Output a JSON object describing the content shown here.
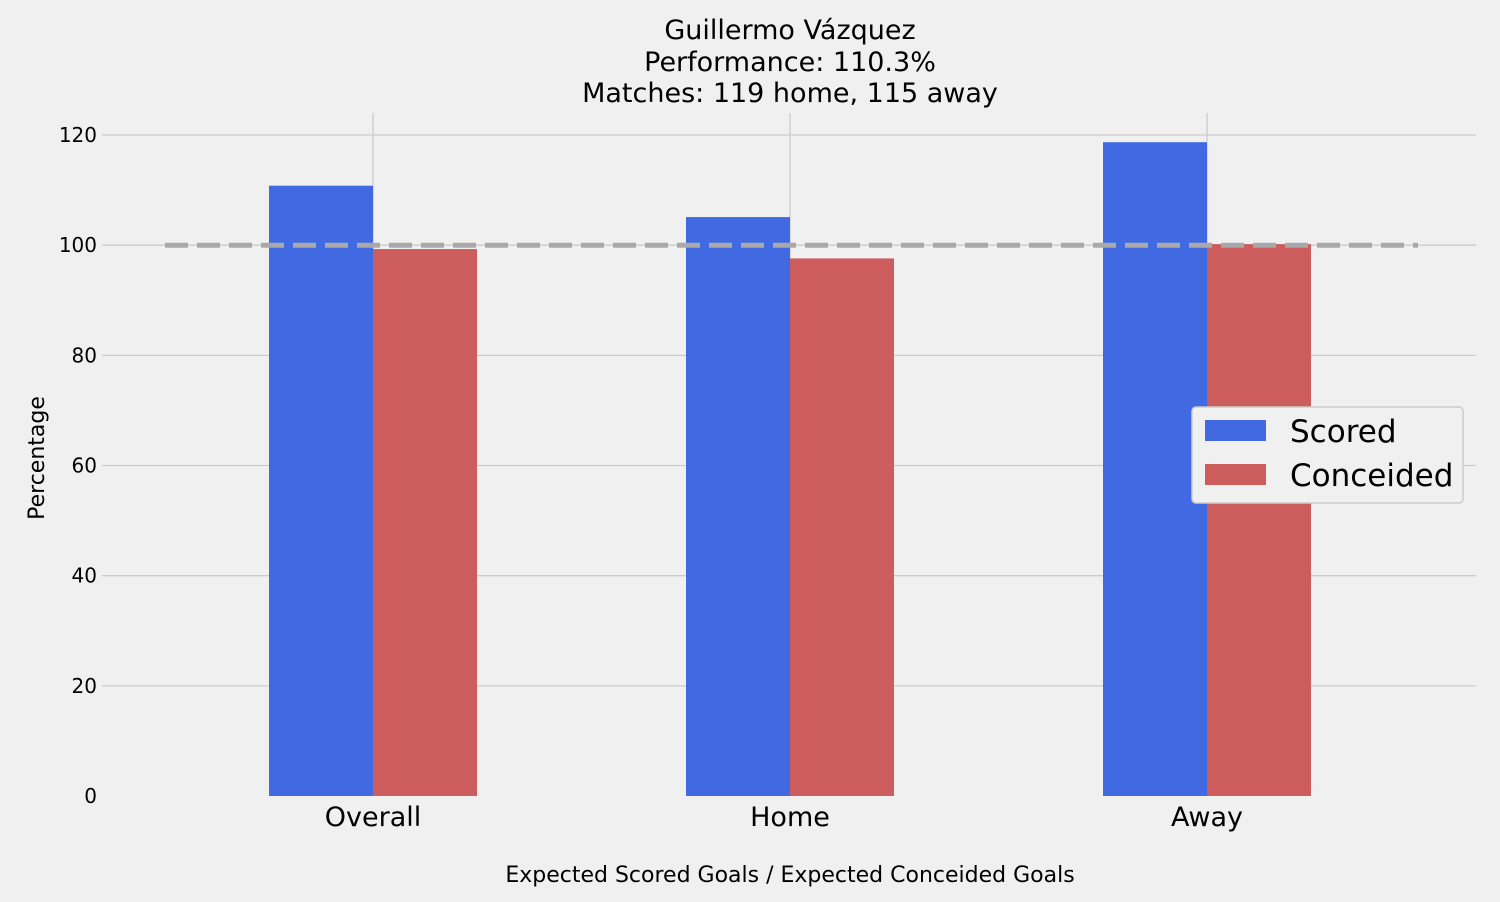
{
  "chart_data": {
    "type": "bar",
    "title": "Guillermo Vázquez",
    "subtitle_lines": [
      "Performance: 110.3%",
      "Matches: 119 home, 115 away"
    ],
    "categories": [
      "Overall",
      "Home",
      "Away"
    ],
    "series": [
      {
        "name": "Scored",
        "values": [
          110.8,
          105.1,
          118.7
        ],
        "color": "#4169e1"
      },
      {
        "name": "Conceided",
        "values": [
          99.3,
          97.6,
          100.2
        ],
        "color": "#cd5c5c"
      }
    ],
    "reference_line": {
      "value": 100,
      "color": "#a9a9a9",
      "style": "dashed"
    },
    "xlabel": "Expected Scored Goals / Expected Conceided Goals",
    "ylabel": "Percentage",
    "ylim": [
      0,
      124
    ],
    "yticks": [
      0,
      20,
      40,
      60,
      80,
      100,
      120
    ],
    "grid": true,
    "legend_position": "center-right",
    "colors": {
      "background": "#f0f0f0",
      "grid": "#cbcbcb"
    }
  }
}
